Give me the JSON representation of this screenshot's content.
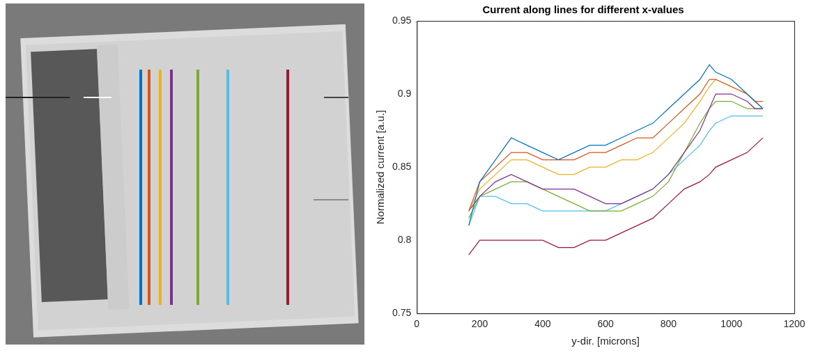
{
  "chart_data": {
    "type": "line",
    "title": "Current along lines for different x-values",
    "x_label": "y-dir. [microns]",
    "y_label": "Normalized current [a.u.]",
    "x": [
      165,
      200,
      250,
      300,
      350,
      400,
      450,
      500,
      550,
      600,
      650,
      700,
      750,
      800,
      850,
      900,
      930,
      950,
      1000,
      1050,
      1075,
      1100
    ],
    "series": [
      {
        "color": "#0072BD",
        "values": [
          0.81,
          0.84,
          0.855,
          0.87,
          0.865,
          0.86,
          0.855,
          0.86,
          0.865,
          0.865,
          0.87,
          0.875,
          0.88,
          0.89,
          0.9,
          0.91,
          0.92,
          0.915,
          0.91,
          0.9,
          0.895,
          0.89
        ]
      },
      {
        "color": "#D95319",
        "values": [
          0.82,
          0.84,
          0.85,
          0.86,
          0.86,
          0.855,
          0.855,
          0.855,
          0.86,
          0.86,
          0.865,
          0.87,
          0.87,
          0.88,
          0.89,
          0.9,
          0.91,
          0.91,
          0.905,
          0.9,
          0.895,
          0.895
        ]
      },
      {
        "color": "#EDB120",
        "values": [
          0.82,
          0.835,
          0.845,
          0.855,
          0.855,
          0.85,
          0.845,
          0.845,
          0.85,
          0.85,
          0.855,
          0.855,
          0.86,
          0.87,
          0.88,
          0.895,
          0.905,
          0.91,
          0.905,
          0.9,
          0.895,
          0.89
        ]
      },
      {
        "color": "#7E2F8E",
        "values": [
          0.82,
          0.83,
          0.84,
          0.845,
          0.84,
          0.835,
          0.835,
          0.835,
          0.83,
          0.825,
          0.825,
          0.83,
          0.835,
          0.845,
          0.86,
          0.875,
          0.89,
          0.9,
          0.9,
          0.895,
          0.89,
          0.89
        ]
      },
      {
        "color": "#77AC30",
        "values": [
          0.815,
          0.83,
          0.835,
          0.84,
          0.84,
          0.835,
          0.83,
          0.825,
          0.82,
          0.82,
          0.82,
          0.825,
          0.83,
          0.84,
          0.86,
          0.88,
          0.89,
          0.895,
          0.895,
          0.89,
          0.89,
          0.89
        ]
      },
      {
        "color": "#4DBEEE",
        "values": [
          0.81,
          0.83,
          0.83,
          0.825,
          0.825,
          0.82,
          0.82,
          0.82,
          0.82,
          0.82,
          0.825,
          0.83,
          0.835,
          0.845,
          0.855,
          0.865,
          0.875,
          0.88,
          0.885,
          0.885,
          0.885,
          0.885
        ]
      },
      {
        "color": "#A2142F",
        "values": [
          0.79,
          0.8,
          0.8,
          0.8,
          0.8,
          0.8,
          0.795,
          0.795,
          0.8,
          0.8,
          0.805,
          0.81,
          0.815,
          0.825,
          0.835,
          0.84,
          0.845,
          0.85,
          0.855,
          0.86,
          0.865,
          0.87
        ]
      }
    ],
    "xlim": [
      0,
      1200
    ],
    "xticks": [
      0,
      200,
      400,
      600,
      800,
      1000,
      1200
    ],
    "ylim": [
      0.75,
      0.95
    ],
    "yticks": [
      0.75,
      0.8,
      0.85,
      0.9,
      0.95
    ],
    "grid": false
  }
}
